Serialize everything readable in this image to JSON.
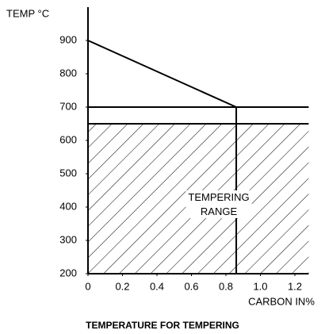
{
  "chart_data": {
    "type": "line",
    "title": "TEMPERATURE FOR TEMPERING",
    "x_label": "CARBON IN%",
    "y_label": "TEMP °C",
    "xlim": [
      0,
      1.28
    ],
    "ylim": [
      200,
      1000
    ],
    "xticks": [
      0,
      0.2,
      0.4,
      0.6,
      0.8,
      {
        "value": 1,
        "label": "1.0"
      },
      1.2
    ],
    "yticks": [
      200,
      300,
      400,
      500,
      600,
      700,
      800,
      900
    ],
    "series": [
      {
        "x": [
          0,
          0.86
        ],
        "values": [
          900,
          700
        ],
        "color": "#000000"
      },
      {
        "x": [
          0,
          1.28
        ],
        "values": [
          700,
          700
        ],
        "color": "#000000"
      },
      {
        "x": [
          0.86,
          0.86
        ],
        "values": [
          700,
          200
        ],
        "color": "#000000"
      }
    ],
    "range": {
      "bottom": 200,
      "top": 650,
      "label": [
        "TEMPERING",
        "RANGE"
      ]
    }
  }
}
